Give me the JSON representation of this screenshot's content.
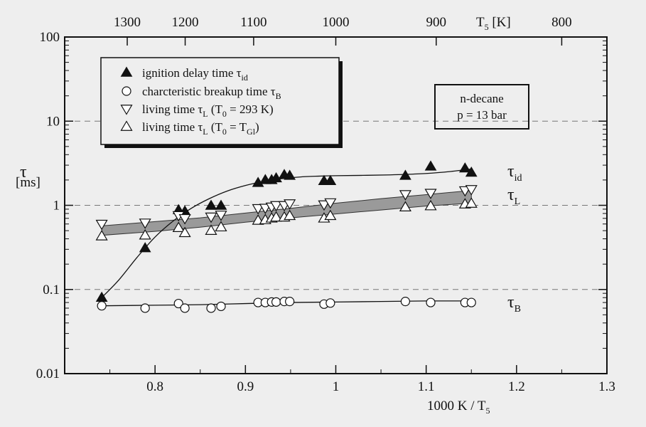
{
  "chart_data": {
    "type": "scatter",
    "x_axis": {
      "label": "1000 K / T",
      "label_sub": "5",
      "range": [
        0.7,
        1.3
      ],
      "ticks": [
        0.8,
        0.9,
        1,
        1.1,
        1.2,
        1.3
      ],
      "tick_labels": [
        "0.8",
        "0.9",
        "1",
        "1.1",
        "1.2",
        "1.3"
      ]
    },
    "x2_axis": {
      "label": "T",
      "label_sub": "5",
      "label_unit": " [K]",
      "ticks_K": [
        1300,
        1200,
        1100,
        1000,
        900,
        800
      ],
      "tick_labels": [
        "1300",
        "1200",
        "1100",
        "1000",
        "900",
        "800"
      ]
    },
    "y_axis": {
      "scale": "log",
      "label": "τ",
      "unit": "[ms]",
      "range": [
        0.01,
        100
      ],
      "ticks": [
        0.01,
        0.1,
        1,
        10,
        100
      ],
      "tick_labels": [
        "0.01",
        "0.1",
        "1",
        "10",
        "100"
      ],
      "grid_dashed_at": [
        0.1,
        1,
        10
      ]
    },
    "legend": {
      "placement": "top-left",
      "items": [
        {
          "series": "tau_id",
          "marker": "filled-triangle-up",
          "text": "ignition delay time τ",
          "sub": "id",
          "tail": ""
        },
        {
          "series": "tau_B",
          "marker": "open-circle",
          "text": "charcteristic breakup time τ",
          "sub": "B",
          "tail": ""
        },
        {
          "series": "tau_L_293",
          "marker": "open-triangle-down",
          "text": "living time τ",
          "sub": "L",
          "tail": " (T",
          "tail_sub": "0",
          "tail_end": " = 293 K)"
        },
        {
          "series": "tau_L_Gl",
          "marker": "open-triangle-up",
          "text": "living time τ",
          "sub": "L",
          "tail": " (T",
          "tail_sub": "0",
          "tail_end": " = T",
          "tail_sub2": "Gl",
          "tail_end2": ")"
        }
      ]
    },
    "info_box": {
      "placement": "right",
      "lines": [
        "n-decane",
        "p = 13 bar"
      ]
    },
    "series": [
      {
        "id": "tau_id",
        "marker": "filled-triangle-up",
        "curve_label": "τ",
        "curve_label_sub": "id",
        "points": [
          [
            0.741,
            0.08
          ],
          [
            0.789,
            0.31
          ],
          [
            0.826,
            0.88
          ],
          [
            0.833,
            0.85
          ],
          [
            0.862,
            0.99
          ],
          [
            0.873,
            0.99
          ],
          [
            0.914,
            1.85
          ],
          [
            0.922,
            2.0
          ],
          [
            0.929,
            2.0
          ],
          [
            0.934,
            2.1
          ],
          [
            0.943,
            2.3
          ],
          [
            0.949,
            2.25
          ],
          [
            0.987,
            1.95
          ],
          [
            0.994,
            1.95
          ],
          [
            1.077,
            2.25
          ],
          [
            1.105,
            2.9
          ],
          [
            1.143,
            2.75
          ],
          [
            1.15,
            2.45
          ]
        ],
        "fit": [
          [
            0.741,
            0.08
          ],
          [
            0.76,
            0.13
          ],
          [
            0.78,
            0.24
          ],
          [
            0.8,
            0.42
          ],
          [
            0.82,
            0.65
          ],
          [
            0.84,
            0.92
          ],
          [
            0.86,
            1.2
          ],
          [
            0.88,
            1.48
          ],
          [
            0.9,
            1.72
          ],
          [
            0.92,
            1.92
          ],
          [
            0.94,
            2.07
          ],
          [
            0.96,
            2.17
          ],
          [
            0.98,
            2.22
          ],
          [
            1.0,
            2.25
          ],
          [
            1.03,
            2.27
          ],
          [
            1.06,
            2.3
          ],
          [
            1.09,
            2.36
          ],
          [
            1.12,
            2.48
          ],
          [
            1.15,
            2.7
          ]
        ]
      },
      {
        "id": "tau_L_293",
        "marker": "open-triangle-down",
        "points": [
          [
            0.741,
            0.6
          ],
          [
            0.789,
            0.62
          ],
          [
            0.826,
            0.76
          ],
          [
            0.833,
            0.7
          ],
          [
            0.862,
            0.73
          ],
          [
            0.873,
            0.77
          ],
          [
            0.914,
            0.92
          ],
          [
            0.922,
            0.93
          ],
          [
            0.929,
            0.96
          ],
          [
            0.934,
            1.0
          ],
          [
            0.943,
            1.0
          ],
          [
            0.949,
            1.05
          ],
          [
            0.987,
            1.02
          ],
          [
            0.994,
            1.08
          ],
          [
            1.077,
            1.35
          ],
          [
            1.105,
            1.4
          ],
          [
            1.143,
            1.5
          ],
          [
            1.15,
            1.55
          ]
        ]
      },
      {
        "id": "tau_L_Gl",
        "marker": "open-triangle-up",
        "points": [
          [
            0.741,
            0.43
          ],
          [
            0.789,
            0.44
          ],
          [
            0.826,
            0.54
          ],
          [
            0.833,
            0.47
          ],
          [
            0.862,
            0.5
          ],
          [
            0.873,
            0.55
          ],
          [
            0.914,
            0.66
          ],
          [
            0.922,
            0.67
          ],
          [
            0.929,
            0.7
          ],
          [
            0.934,
            0.72
          ],
          [
            0.943,
            0.72
          ],
          [
            0.949,
            0.75
          ],
          [
            0.987,
            0.7
          ],
          [
            0.994,
            0.75
          ],
          [
            1.077,
            0.95
          ],
          [
            1.105,
            0.98
          ],
          [
            1.143,
            1.03
          ],
          [
            1.15,
            1.05
          ]
        ]
      },
      {
        "id": "tau_L_band",
        "type": "band",
        "curve_label": "τ",
        "curve_label_sub": "L",
        "upper": [
          [
            0.741,
            0.57
          ],
          [
            0.8,
            0.64
          ],
          [
            0.85,
            0.71
          ],
          [
            0.9,
            0.81
          ],
          [
            0.95,
            0.92
          ],
          [
            1.0,
            1.06
          ],
          [
            1.05,
            1.2
          ],
          [
            1.1,
            1.34
          ],
          [
            1.15,
            1.5
          ]
        ],
        "lower": [
          [
            0.741,
            0.44
          ],
          [
            0.8,
            0.49
          ],
          [
            0.85,
            0.55
          ],
          [
            0.9,
            0.63
          ],
          [
            0.95,
            0.71
          ],
          [
            1.0,
            0.79
          ],
          [
            1.05,
            0.88
          ],
          [
            1.1,
            0.98
          ],
          [
            1.15,
            1.06
          ]
        ]
      },
      {
        "id": "tau_B",
        "marker": "open-circle",
        "curve_label": "τ",
        "curve_label_sub": "B",
        "points": [
          [
            0.741,
            0.064
          ],
          [
            0.789,
            0.06
          ],
          [
            0.826,
            0.068
          ],
          [
            0.833,
            0.06
          ],
          [
            0.862,
            0.06
          ],
          [
            0.873,
            0.063
          ],
          [
            0.914,
            0.07
          ],
          [
            0.922,
            0.07
          ],
          [
            0.929,
            0.071
          ],
          [
            0.934,
            0.071
          ],
          [
            0.943,
            0.072
          ],
          [
            0.949,
            0.072
          ],
          [
            0.987,
            0.067
          ],
          [
            0.994,
            0.069
          ],
          [
            1.077,
            0.072
          ],
          [
            1.105,
            0.07
          ],
          [
            1.143,
            0.07
          ],
          [
            1.15,
            0.07
          ]
        ],
        "fit": [
          [
            0.741,
            0.064
          ],
          [
            0.8,
            0.065
          ],
          [
            0.85,
            0.066
          ],
          [
            0.9,
            0.068
          ],
          [
            0.95,
            0.07
          ],
          [
            1.0,
            0.071
          ],
          [
            1.05,
            0.072
          ],
          [
            1.1,
            0.073
          ],
          [
            1.15,
            0.073
          ]
        ]
      }
    ]
  }
}
